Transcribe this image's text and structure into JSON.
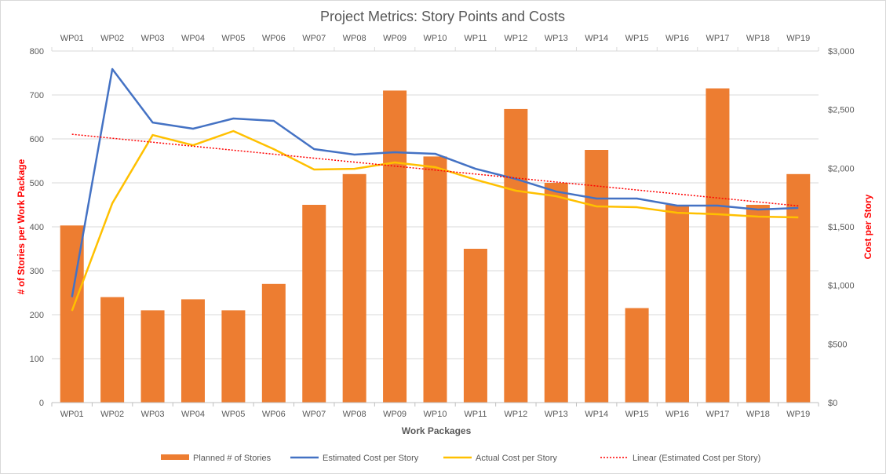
{
  "chart_data": {
    "type": "bar+line",
    "title": "Project Metrics: Story Points and Costs",
    "xlabel": "Work Packages",
    "ylabel": "# of Stories per Work Package",
    "y2label": "Cost per Story",
    "ylim": [
      0,
      800
    ],
    "yticks": [
      0,
      100,
      200,
      300,
      400,
      500,
      600,
      700,
      800
    ],
    "y2lim": [
      0,
      3000
    ],
    "y2ticks": [
      "$0",
      "$500",
      "$1,000",
      "$1,500",
      "$2,000",
      "$2,500",
      "$3,000"
    ],
    "grid": true,
    "legend_position": "bottom",
    "categories": [
      "WP01",
      "WP02",
      "WP03",
      "WP04",
      "WP05",
      "WP06",
      "WP07",
      "WP08",
      "WP09",
      "WP10",
      "WP11",
      "WP12",
      "WP13",
      "WP14",
      "WP15",
      "WP16",
      "WP17",
      "WP18",
      "WP19"
    ],
    "series": [
      {
        "name": "Planned # of Stories",
        "type": "bar",
        "axis": "left",
        "color": "#ed7d31",
        "values": [
          403,
          240,
          210,
          235,
          210,
          270,
          450,
          520,
          710,
          560,
          350,
          668,
          500,
          575,
          215,
          450,
          715,
          450,
          520
        ]
      },
      {
        "name": "Estimated Cost per Story",
        "type": "line",
        "axis": "right",
        "color": "#4472c4",
        "values": [
          900,
          2846,
          2390,
          2337,
          2424,
          2404,
          2163,
          2116,
          2136,
          2123,
          1995,
          1908,
          1801,
          1741,
          1741,
          1681,
          1681,
          1647,
          1661
        ]
      },
      {
        "name": "Actual Cost per Story",
        "type": "line",
        "axis": "right",
        "color": "#ffc000",
        "values": [
          783,
          1701,
          2283,
          2196,
          2317,
          2163,
          1989,
          1995,
          2049,
          2009,
          1902,
          1808,
          1761,
          1674,
          1667,
          1620,
          1607,
          1587,
          1580
        ]
      },
      {
        "name": "Linear (Estimated Cost per Story)",
        "type": "trendline",
        "axis": "right",
        "color": "#ff0000",
        "of": "Estimated Cost per Story"
      }
    ]
  }
}
